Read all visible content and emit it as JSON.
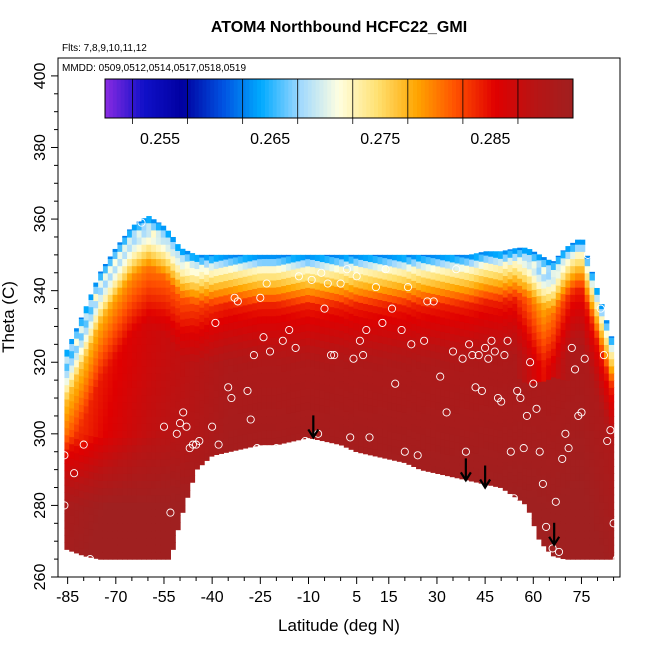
{
  "chart_data": {
    "type": "heatmap",
    "title": "ATOM4 Northbound HCFC22_GMI",
    "annotations": [
      "Flts: 7,8,9,10,11,12",
      "MMDD: 0509,0512,0514,0517,0518,0519"
    ],
    "xlabel": "Latitude (deg N)",
    "ylabel": "Theta (C)",
    "xlim": [
      -88,
      87
    ],
    "ylim": [
      260,
      405
    ],
    "x_ticks": [
      -85,
      -70,
      -55,
      -40,
      -25,
      -10,
      5,
      15,
      30,
      45,
      60,
      75
    ],
    "y_ticks": [
      260,
      280,
      300,
      320,
      340,
      360,
      380,
      400
    ],
    "colorbar": {
      "min": 0.25,
      "max": 0.2925,
      "ticks": [
        0.255,
        0.265,
        0.275,
        0.285
      ],
      "tick_labels": [
        "0.255",
        "0.265",
        "0.275",
        "0.285"
      ],
      "colors": [
        "#8a2be2",
        "#1010c8",
        "#0000a0",
        "#0050e0",
        "#00aaff",
        "#9fd8ff",
        "#ffffe0",
        "#ffe070",
        "#ffa500",
        "#ff5000",
        "#e00000",
        "#b81414",
        "#a02020"
      ]
    },
    "grid": false,
    "envelope": {
      "lat": [
        -86,
        -80,
        -75,
        -70,
        -65,
        -60,
        -55,
        -53,
        -50,
        -45,
        -40,
        -35,
        -30,
        -25,
        -20,
        -15,
        -10,
        -5,
        0,
        5,
        10,
        15,
        20,
        25,
        30,
        35,
        40,
        45,
        50,
        55,
        58,
        62,
        66,
        70,
        75,
        80,
        85
      ],
      "theta_top": [
        322,
        334,
        345,
        352,
        358,
        361,
        358,
        356,
        352,
        350,
        350,
        350,
        350,
        350,
        350,
        350,
        350,
        350,
        350,
        350,
        350,
        350,
        350,
        350,
        350,
        350,
        350,
        351,
        351,
        352,
        352,
        350,
        348,
        352,
        355,
        340,
        325
      ],
      "theta_bot": [
        268,
        266,
        265,
        265,
        265,
        265,
        265,
        265,
        276,
        290,
        294,
        295,
        296,
        297,
        297,
        298,
        299,
        298,
        297,
        295,
        294,
        293,
        292,
        290,
        289,
        288,
        287,
        286,
        285,
        282,
        280,
        270,
        266,
        265,
        265,
        265,
        265
      ]
    },
    "points": [
      [
        -86,
        294
      ],
      [
        -86,
        280
      ],
      [
        -83,
        289
      ],
      [
        -80,
        297
      ],
      [
        -78,
        265
      ],
      [
        -73,
        359
      ],
      [
        -69,
        361
      ],
      [
        -64,
        362
      ],
      [
        -62,
        359
      ],
      [
        -55,
        302
      ],
      [
        -53,
        278
      ],
      [
        -51,
        300
      ],
      [
        -50,
        303
      ],
      [
        -49,
        306
      ],
      [
        -48,
        302
      ],
      [
        -47,
        296
      ],
      [
        -46,
        297
      ],
      [
        -45,
        297
      ],
      [
        -44,
        298
      ],
      [
        -43,
        276
      ],
      [
        -42,
        280
      ],
      [
        -40,
        302
      ],
      [
        -39,
        331
      ],
      [
        -38,
        297
      ],
      [
        -36,
        289
      ],
      [
        -35,
        313
      ],
      [
        -34,
        310
      ],
      [
        -33,
        338
      ],
      [
        -32,
        337
      ],
      [
        -29,
        312
      ],
      [
        -28,
        304
      ],
      [
        -27,
        322
      ],
      [
        -26,
        296
      ],
      [
        -25,
        338
      ],
      [
        -24,
        327
      ],
      [
        -23,
        342
      ],
      [
        -22,
        323
      ],
      [
        -20,
        296
      ],
      [
        -18,
        326
      ],
      [
        -16,
        329
      ],
      [
        -14,
        324
      ],
      [
        -13,
        344
      ],
      [
        -11,
        298
      ],
      [
        -9,
        343
      ],
      [
        -7,
        300
      ],
      [
        -6,
        345
      ],
      [
        -5,
        335
      ],
      [
        -4,
        342
      ],
      [
        -3,
        322
      ],
      [
        -2,
        322
      ],
      [
        0,
        342
      ],
      [
        2,
        346
      ],
      [
        3,
        299
      ],
      [
        4,
        321
      ],
      [
        5,
        344
      ],
      [
        6,
        326
      ],
      [
        7,
        322
      ],
      [
        8,
        329
      ],
      [
        9,
        299
      ],
      [
        11,
        341
      ],
      [
        13,
        331
      ],
      [
        14,
        346
      ],
      [
        16,
        335
      ],
      [
        17,
        314
      ],
      [
        19,
        329
      ],
      [
        20,
        295
      ],
      [
        21,
        341
      ],
      [
        22,
        325
      ],
      [
        24,
        294
      ],
      [
        26,
        326
      ],
      [
        27,
        337
      ],
      [
        29,
        337
      ],
      [
        31,
        316
      ],
      [
        33,
        306
      ],
      [
        35,
        323
      ],
      [
        36,
        346
      ],
      [
        38,
        321
      ],
      [
        39,
        295
      ],
      [
        40,
        325
      ],
      [
        41,
        322
      ],
      [
        42,
        313
      ],
      [
        43,
        322
      ],
      [
        44,
        312
      ],
      [
        45,
        324
      ],
      [
        46,
        321
      ],
      [
        47,
        326
      ],
      [
        48,
        323
      ],
      [
        49,
        310
      ],
      [
        50,
        309
      ],
      [
        51,
        322
      ],
      [
        52,
        326
      ],
      [
        53,
        295
      ],
      [
        54,
        282
      ],
      [
        55,
        312
      ],
      [
        56,
        310
      ],
      [
        57,
        296
      ],
      [
        58,
        305
      ],
      [
        59,
        320
      ],
      [
        60,
        314
      ],
      [
        61,
        307
      ],
      [
        62,
        295
      ],
      [
        63,
        286
      ],
      [
        64,
        274
      ],
      [
        65,
        262
      ],
      [
        66,
        268
      ],
      [
        67,
        281
      ],
      [
        68,
        267
      ],
      [
        69,
        293
      ],
      [
        70,
        300
      ],
      [
        71,
        296
      ],
      [
        72,
        324
      ],
      [
        73,
        318
      ],
      [
        74,
        305
      ],
      [
        75,
        306
      ],
      [
        76,
        321
      ],
      [
        77,
        350
      ],
      [
        78,
        356
      ],
      [
        79,
        351
      ],
      [
        80,
        354
      ],
      [
        81,
        335
      ],
      [
        82,
        322
      ],
      [
        83,
        298
      ],
      [
        84,
        301
      ],
      [
        85,
        275
      ],
      [
        86,
        265
      ]
    ],
    "arrows": [
      {
        "lat": -8.5,
        "theta": 299
      },
      {
        "lat": 39,
        "theta": 287
      },
      {
        "lat": 45,
        "theta": 285
      },
      {
        "lat": 66.5,
        "theta": 269
      }
    ]
  }
}
